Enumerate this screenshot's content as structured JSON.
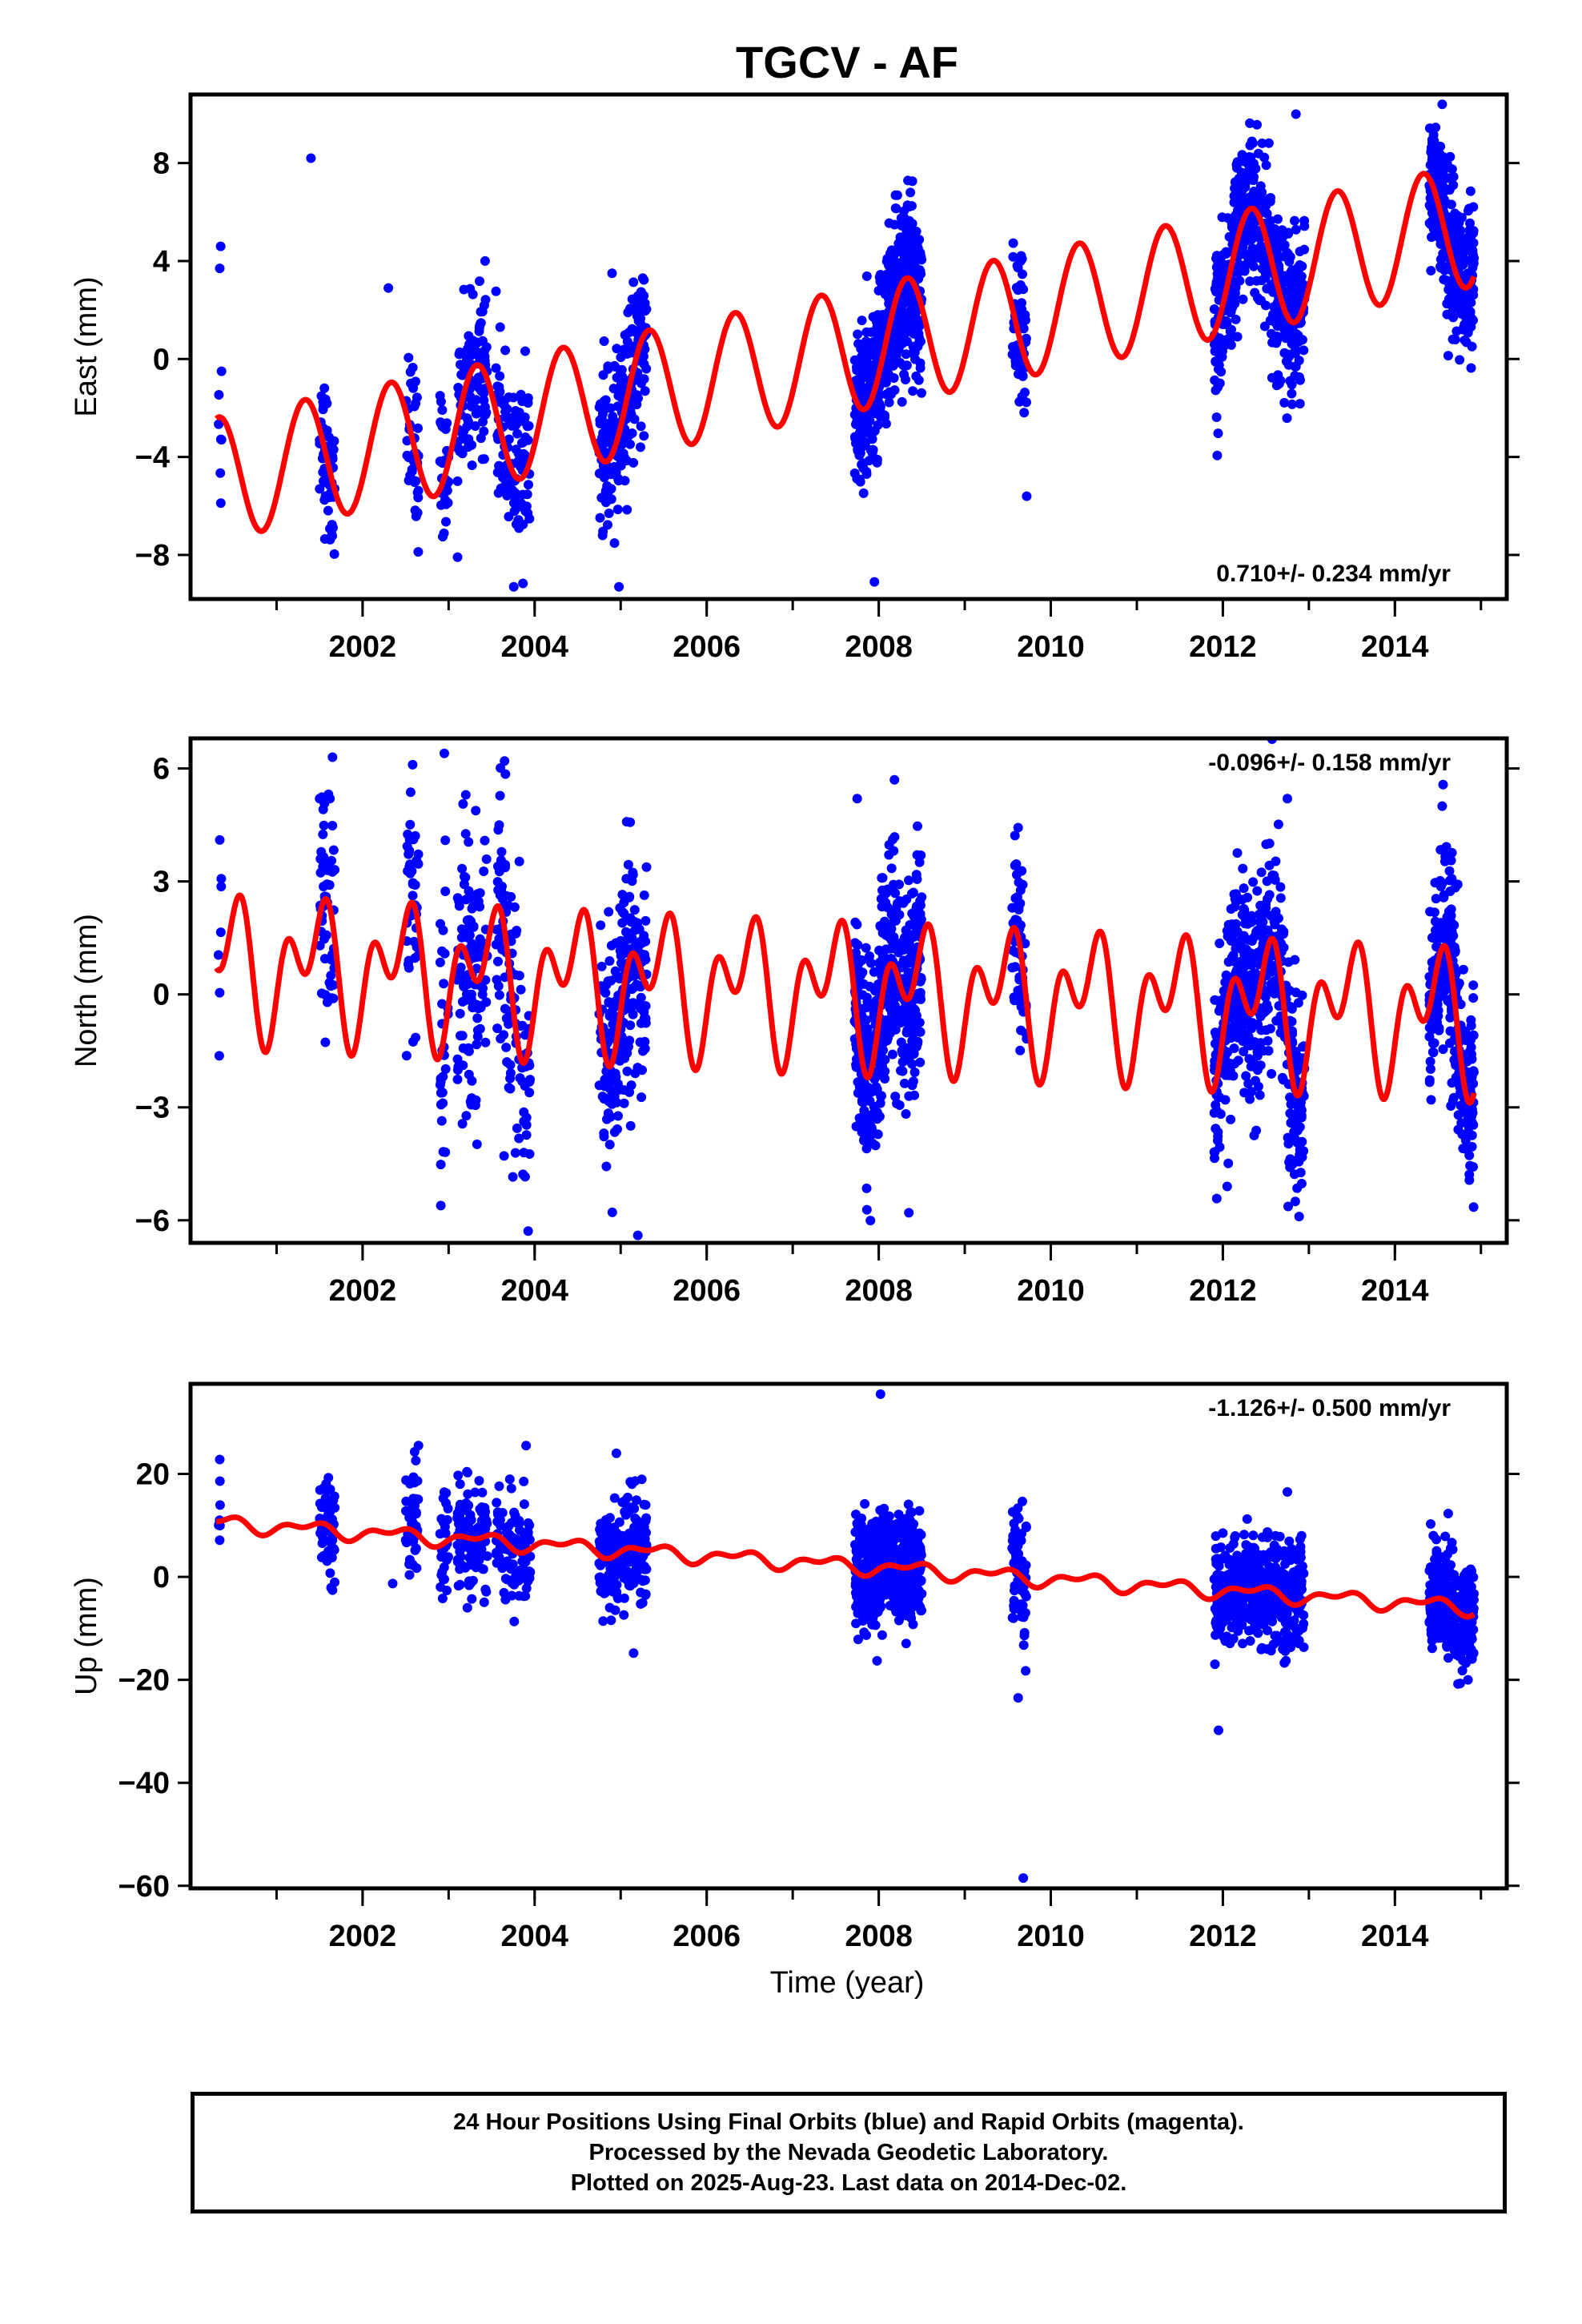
{
  "title": "TGCV - AF",
  "xlabel": "Time (year)",
  "x_ticks": [
    "2002",
    "2004",
    "2006",
    "2008",
    "2010",
    "2012",
    "2014"
  ],
  "footer": {
    "line1": "24 Hour Positions Using Final Orbits (blue) and Rapid Orbits (magenta).",
    "line2": "Processed by the Nevada Geodetic Laboratory.",
    "line3": "Plotted on 2025-Aug-23. Last data on 2014-Dec-02."
  },
  "colors": {
    "final_orbits": "#0000ff",
    "model": "#ff0000",
    "axis": "#000000"
  },
  "chart_data": [
    {
      "type": "scatter",
      "ylabel": "East (mm)",
      "xlim": [
        2000.0,
        2015.3
      ],
      "ylim": [
        -9.8,
        10.8
      ],
      "y_ticks": [
        -8,
        -4,
        0,
        4,
        8
      ],
      "rate_label": "0.710+/- 0.234 mm/yr",
      "grid": false,
      "model": {
        "name": "model",
        "color": "#ff0000",
        "offset": -4.9,
        "rate": 0.71,
        "sin": 2.2,
        "cos": -1.2,
        "sin2": 0.0,
        "cos2": 0.0,
        "start": 2000.3,
        "end": 2014.92
      },
      "clusters": [
        {
          "start": 2000.32,
          "end": 2000.36,
          "n": 6,
          "spread": 2.2
        },
        {
          "start": 2001.5,
          "end": 2001.68,
          "n": 55,
          "spread": 1.5
        },
        {
          "start": 2002.5,
          "end": 2002.65,
          "n": 40,
          "spread": 1.6
        },
        {
          "start": 2002.9,
          "end": 2003.0,
          "n": 30,
          "spread": 1.8
        },
        {
          "start": 2003.1,
          "end": 2003.45,
          "n": 120,
          "spread": 1.6
        },
        {
          "start": 2003.55,
          "end": 2003.95,
          "n": 110,
          "spread": 1.8
        },
        {
          "start": 2004.75,
          "end": 2005.3,
          "n": 240,
          "spread": 1.6
        },
        {
          "start": 2007.72,
          "end": 2008.5,
          "n": 560,
          "spread": 1.7
        },
        {
          "start": 2009.55,
          "end": 2009.72,
          "n": 60,
          "spread": 1.6
        },
        {
          "start": 2011.9,
          "end": 2012.95,
          "n": 520,
          "spread": 1.6
        },
        {
          "start": 2014.4,
          "end": 2014.92,
          "n": 330,
          "spread": 1.5
        }
      ],
      "outliers": [
        {
          "x": 2000.35,
          "y": 4.6
        },
        {
          "x": 2000.34,
          "y": 3.7
        },
        {
          "x": 2000.36,
          "y": -0.5
        },
        {
          "x": 2001.4,
          "y": 8.2
        },
        {
          "x": 2002.3,
          "y": 2.9
        },
        {
          "x": 2004.9,
          "y": 3.5
        },
        {
          "x": 2004.98,
          "y": -9.3
        },
        {
          "x": 2007.95,
          "y": -9.1
        },
        {
          "x": 2008.1,
          "y": 4.1
        },
        {
          "x": 2009.65,
          "y": 4.0
        },
        {
          "x": 2009.72,
          "y": -5.6
        },
        {
          "x": 2012.85,
          "y": 10.0
        },
        {
          "x": 2014.55,
          "y": 10.4
        }
      ]
    },
    {
      "type": "scatter",
      "ylabel": "North (mm)",
      "xlim": [
        2000.0,
        2015.3
      ],
      "ylim": [
        -6.6,
        6.8
      ],
      "y_ticks": [
        -6,
        -3,
        0,
        3,
        6
      ],
      "rate_label": "-0.096+/- 0.158 mm/yr",
      "grid": false,
      "model": {
        "name": "model",
        "color": "#ff0000",
        "offset": 0.8,
        "rate": -0.096,
        "sin": 0.5,
        "cos": -1.1,
        "sin2": 1.15,
        "cos2": 0.3,
        "start": 2000.3,
        "end": 2014.92
      },
      "clusters": [
        {
          "start": 2000.32,
          "end": 2000.36,
          "n": 6,
          "spread": 2.0
        },
        {
          "start": 2001.5,
          "end": 2001.68,
          "n": 55,
          "spread": 1.8
        },
        {
          "start": 2002.5,
          "end": 2002.65,
          "n": 40,
          "spread": 2.0
        },
        {
          "start": 2002.9,
          "end": 2003.0,
          "n": 30,
          "spread": 2.0
        },
        {
          "start": 2003.1,
          "end": 2003.45,
          "n": 120,
          "spread": 1.8
        },
        {
          "start": 2003.55,
          "end": 2003.95,
          "n": 110,
          "spread": 1.8
        },
        {
          "start": 2004.75,
          "end": 2005.3,
          "n": 240,
          "spread": 1.5
        },
        {
          "start": 2007.72,
          "end": 2008.5,
          "n": 560,
          "spread": 1.4
        },
        {
          "start": 2009.55,
          "end": 2009.72,
          "n": 60,
          "spread": 1.4
        },
        {
          "start": 2011.9,
          "end": 2012.95,
          "n": 520,
          "spread": 1.4
        },
        {
          "start": 2014.4,
          "end": 2014.92,
          "n": 330,
          "spread": 1.3
        }
      ],
      "outliers": [
        {
          "x": 2000.34,
          "y": 4.1
        },
        {
          "x": 2001.5,
          "y": 5.2
        },
        {
          "x": 2001.65,
          "y": 6.3
        },
        {
          "x": 2002.95,
          "y": 6.4
        },
        {
          "x": 2003.2,
          "y": 5.3
        },
        {
          "x": 2003.65,
          "y": 6.2
        },
        {
          "x": 2003.27,
          "y": -2.3
        },
        {
          "x": 2005.2,
          "y": -6.4
        },
        {
          "x": 2007.75,
          "y": 5.2
        },
        {
          "x": 2008.35,
          "y": -5.8
        },
        {
          "x": 2012.75,
          "y": 5.2
        },
        {
          "x": 2014.55,
          "y": 5.0
        },
        {
          "x": 2012.05,
          "y": -5.1
        },
        {
          "x": 2008.02,
          "y": 1.8
        }
      ]
    },
    {
      "type": "scatter",
      "ylabel": "Up (mm)",
      "xlim": [
        2000.0,
        2015.3
      ],
      "ylim": [
        -60.5,
        37.5
      ],
      "y_ticks": [
        -60,
        -40,
        -20,
        0,
        20
      ],
      "rate_label": "-1.126+/- 0.500 mm/yr",
      "grid": false,
      "model": {
        "name": "model",
        "color": "#ff0000",
        "offset": 10.5,
        "rate": -1.126,
        "sin": 0.8,
        "cos": -0.8,
        "sin2": 0.6,
        "cos2": 0.5,
        "start": 2000.3,
        "end": 2014.92
      },
      "clusters": [
        {
          "start": 2000.32,
          "end": 2000.36,
          "n": 6,
          "spread": 4.0
        },
        {
          "start": 2001.5,
          "end": 2001.68,
          "n": 55,
          "spread": 5.0
        },
        {
          "start": 2002.5,
          "end": 2002.65,
          "n": 40,
          "spread": 6.0
        },
        {
          "start": 2002.9,
          "end": 2003.0,
          "n": 30,
          "spread": 5.0
        },
        {
          "start": 2003.1,
          "end": 2003.45,
          "n": 120,
          "spread": 5.0
        },
        {
          "start": 2003.55,
          "end": 2003.95,
          "n": 110,
          "spread": 5.0
        },
        {
          "start": 2004.75,
          "end": 2005.3,
          "n": 240,
          "spread": 5.0
        },
        {
          "start": 2007.72,
          "end": 2008.5,
          "n": 560,
          "spread": 5.0
        },
        {
          "start": 2009.55,
          "end": 2009.72,
          "n": 60,
          "spread": 6.0
        },
        {
          "start": 2011.9,
          "end": 2012.95,
          "n": 520,
          "spread": 5.0
        },
        {
          "start": 2014.4,
          "end": 2014.92,
          "n": 330,
          "spread": 5.0
        }
      ],
      "outliers": [
        {
          "x": 2000.34,
          "y": 22.8
        },
        {
          "x": 2002.65,
          "y": 25.5
        },
        {
          "x": 2003.9,
          "y": 25.5
        },
        {
          "x": 2002.35,
          "y": -1.3
        },
        {
          "x": 2004.95,
          "y": 24.0
        },
        {
          "x": 2005.15,
          "y": -14.8
        },
        {
          "x": 2008.02,
          "y": 35.5
        },
        {
          "x": 2007.98,
          "y": -16.3
        },
        {
          "x": 2009.68,
          "y": -58.5
        },
        {
          "x": 2009.62,
          "y": -23.5
        },
        {
          "x": 2011.95,
          "y": -29.8
        },
        {
          "x": 2012.75,
          "y": 16.5
        },
        {
          "x": 2014.62,
          "y": 12.3
        },
        {
          "x": 2014.85,
          "y": -20.0
        },
        {
          "x": 2012.0,
          "y": 8.5
        }
      ]
    }
  ]
}
